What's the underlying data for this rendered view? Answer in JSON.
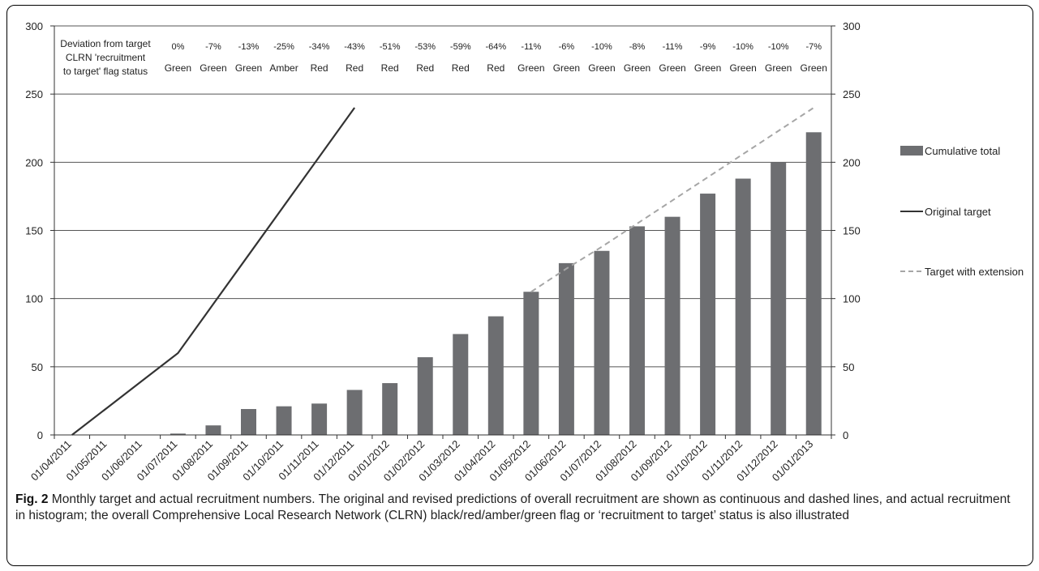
{
  "chart_data": {
    "type": "bar",
    "categories": [
      "01/04/2011",
      "01/05/2011",
      "01/06/2011",
      "01/07/2011",
      "01/08/2011",
      "01/09/2011",
      "01/10/2011",
      "01/11/2011",
      "01/12/2011",
      "01/01/2012",
      "01/02/2012",
      "01/03/2012",
      "01/04/2012",
      "01/05/2012",
      "01/06/2012",
      "01/07/2012",
      "01/08/2012",
      "01/09/2012",
      "01/10/2012",
      "01/11/2012",
      "01/12/2012",
      "01/01/2013"
    ],
    "series": [
      {
        "name": "Cumulative total",
        "kind": "bar",
        "color": "#6d6e71",
        "values": [
          0,
          0,
          0,
          1,
          7,
          19,
          21,
          23,
          33,
          38,
          57,
          74,
          87,
          105,
          126,
          135,
          153,
          160,
          177,
          188,
          200,
          222
        ]
      },
      {
        "name": "Original target",
        "kind": "line",
        "style": "solid",
        "color": "#333333",
        "values": [
          0,
          20,
          40,
          60,
          96,
          132,
          168,
          204,
          240,
          null,
          null,
          null,
          null,
          null,
          null,
          null,
          null,
          null,
          null,
          null,
          null,
          null
        ]
      },
      {
        "name": "Target with extension",
        "kind": "line",
        "style": "dashed",
        "color": "#a6a6a6",
        "values": [
          null,
          null,
          null,
          null,
          null,
          null,
          null,
          null,
          null,
          null,
          null,
          null,
          null,
          105,
          122,
          138,
          155,
          172,
          189,
          206,
          223,
          240
        ]
      }
    ],
    "ylim": [
      0,
      300
    ],
    "yticks": [
      "0",
      "50",
      "100",
      "150",
      "200",
      "250",
      "300"
    ],
    "grid": true,
    "legend_position": "right",
    "annotation_rows": {
      "deviation_label": "Deviation from target",
      "deviation": [
        "0%",
        "-7%",
        "-13%",
        "-25%",
        "-34%",
        "-43%",
        "-51%",
        "-53%",
        "-59%",
        "-64%",
        "-11%",
        "-6%",
        "-10%",
        "-8%",
        "-11%",
        "-9%",
        "-10%",
        "-10%",
        "-7%"
      ],
      "flag_label_line1": "CLRN 'recruitment",
      "flag_label_line2": "to target' flag status",
      "flag_status": [
        "Green",
        "Green",
        "Green",
        "Amber",
        "Red",
        "Red",
        "Red",
        "Red",
        "Red",
        "Red",
        "Green",
        "Green",
        "Green",
        "Green",
        "Green",
        "Green",
        "Green",
        "Green",
        "Green"
      ]
    }
  },
  "caption": {
    "label": "Fig. 2",
    "text": "Monthly target and actual recruitment numbers. The original and revised predictions of overall recruitment are shown as continuous and dashed lines, and actual recruitment in histogram; the overall Comprehensive Local Research Network (CLRN) black/red/amber/green flag or ‘recruitment to target’ status is also illustrated"
  }
}
